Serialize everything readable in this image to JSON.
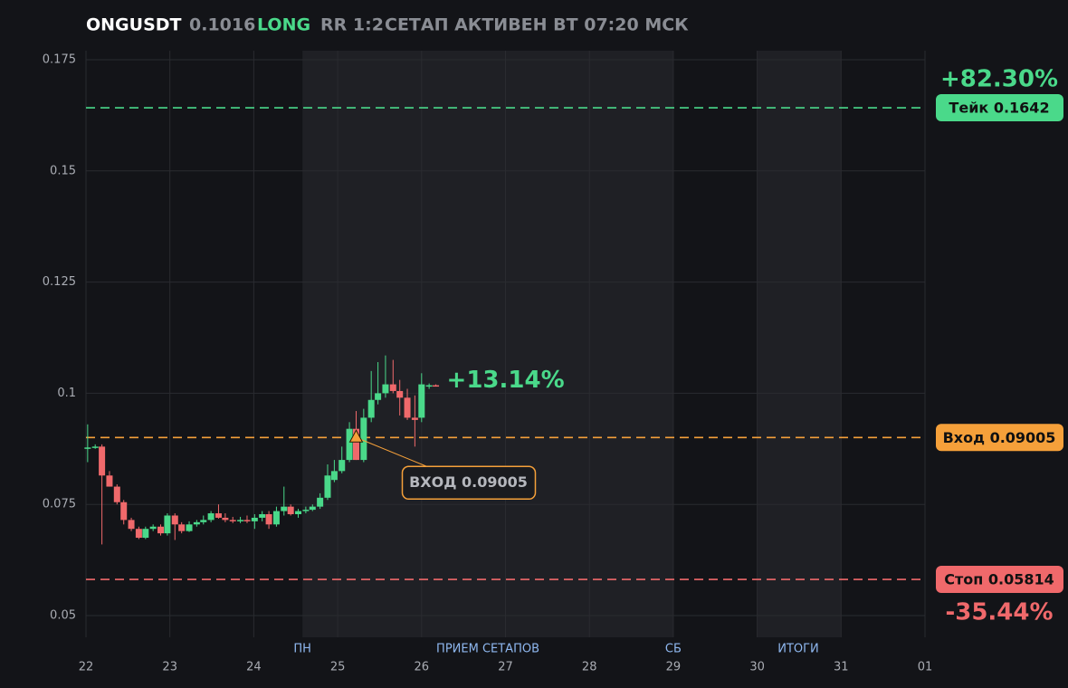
{
  "header": {
    "symbol": "ONGUSDT",
    "price": 0.1016,
    "side": "LONG",
    "rr": "RR 1:2",
    "status": "СЕТАП АКТИВЕН ВТ 07:20 МСК"
  },
  "chart_data": {
    "type": "candlestick",
    "x": [
      0.02,
      0.11,
      0.19,
      0.28,
      0.37,
      0.45,
      0.54,
      0.63,
      0.71,
      0.8,
      0.89,
      0.97,
      1.06,
      1.14,
      1.23,
      1.32,
      1.4,
      1.49,
      1.58,
      1.66,
      1.75,
      1.84,
      1.92,
      2.01,
      2.1,
      2.18,
      2.27,
      2.36,
      2.44,
      2.53,
      2.62,
      2.7,
      2.79,
      2.88,
      2.96,
      3.05,
      3.14,
      3.22,
      3.31,
      3.4,
      3.48,
      3.57,
      3.66,
      3.74,
      3.83,
      3.92,
      4.0,
      4.09,
      4.17
    ],
    "open": [
      0.0875,
      0.0878,
      0.088,
      0.0815,
      0.079,
      0.0755,
      0.0715,
      0.0695,
      0.0675,
      0.0695,
      0.07,
      0.0685,
      0.0725,
      0.0705,
      0.069,
      0.0705,
      0.071,
      0.0715,
      0.073,
      0.072,
      0.0715,
      0.0712,
      0.0715,
      0.0712,
      0.072,
      0.0728,
      0.0705,
      0.0735,
      0.0745,
      0.0728,
      0.0735,
      0.0738,
      0.0745,
      0.0765,
      0.0805,
      0.0825,
      0.085,
      0.092,
      0.085,
      0.0945,
      0.0985,
      0.1,
      0.102,
      0.1005,
      0.099,
      0.0945,
      0.0945,
      0.1015,
      0.1018
    ],
    "high": [
      0.093,
      0.0885,
      0.0885,
      0.0825,
      0.0795,
      0.076,
      0.072,
      0.07,
      0.07,
      0.0705,
      0.0705,
      0.073,
      0.073,
      0.071,
      0.0712,
      0.0715,
      0.0725,
      0.0735,
      0.075,
      0.073,
      0.0722,
      0.0722,
      0.0725,
      0.0728,
      0.0735,
      0.0735,
      0.0745,
      0.079,
      0.075,
      0.074,
      0.0745,
      0.075,
      0.0775,
      0.084,
      0.085,
      0.088,
      0.0935,
      0.096,
      0.0965,
      0.105,
      0.107,
      0.1085,
      0.1075,
      0.103,
      0.101,
      0.0995,
      0.1045,
      0.1022,
      0.102
    ],
    "low": [
      0.0845,
      0.0875,
      0.066,
      0.079,
      0.075,
      0.0705,
      0.069,
      0.0672,
      0.0672,
      0.069,
      0.068,
      0.068,
      0.067,
      0.0685,
      0.0688,
      0.07,
      0.0705,
      0.071,
      0.0718,
      0.071,
      0.0708,
      0.0708,
      0.0708,
      0.0695,
      0.0712,
      0.0695,
      0.07,
      0.0725,
      0.0725,
      0.072,
      0.073,
      0.0735,
      0.074,
      0.076,
      0.08,
      0.082,
      0.0845,
      0.085,
      0.0845,
      0.0935,
      0.0975,
      0.099,
      0.1,
      0.095,
      0.094,
      0.088,
      0.0935,
      0.101,
      0.1015
    ],
    "close": [
      0.0878,
      0.088,
      0.0815,
      0.079,
      0.0755,
      0.0715,
      0.0695,
      0.0675,
      0.0695,
      0.07,
      0.0685,
      0.0725,
      0.0705,
      0.069,
      0.0705,
      0.071,
      0.0715,
      0.073,
      0.072,
      0.0715,
      0.0712,
      0.0715,
      0.0712,
      0.072,
      0.0728,
      0.0705,
      0.0735,
      0.0745,
      0.0728,
      0.0735,
      0.0738,
      0.0745,
      0.0765,
      0.0815,
      0.0825,
      0.085,
      0.092,
      0.085,
      0.0945,
      0.0985,
      0.1,
      0.102,
      0.1005,
      0.099,
      0.0945,
      0.094,
      0.102,
      0.1018,
      0.1016
    ],
    "up_color": "#4ad98a",
    "down_color": "#f0696b",
    "xlim": [
      0,
      10
    ],
    "xticks": [
      {
        "value": 0,
        "label": "22"
      },
      {
        "value": 1,
        "label": "23"
      },
      {
        "value": 2,
        "label": "24"
      },
      {
        "value": 3,
        "label": "25"
      },
      {
        "value": 4,
        "label": "26"
      },
      {
        "value": 5,
        "label": "27"
      },
      {
        "value": 6,
        "label": "28"
      },
      {
        "value": 7,
        "label": "29"
      },
      {
        "value": 8,
        "label": "30"
      },
      {
        "value": 9,
        "label": "31"
      },
      {
        "value": 10,
        "label": "01"
      }
    ],
    "ylim": [
      0.05,
      0.175
    ],
    "yticks": [
      0.05,
      0.075,
      0.1,
      0.125,
      0.15,
      0.175
    ],
    "grid": true,
    "shaded": [
      {
        "start": 2.58,
        "end": 7.0
      },
      {
        "start": 8.0,
        "end": 9.0
      }
    ],
    "markers": [
      {
        "x": 2.58,
        "label": "ПН"
      },
      {
        "x": 4.79,
        "label": "ПРИЕМ СЕТАПОВ"
      },
      {
        "x": 7.0,
        "label": "СБ"
      },
      {
        "x": 8.49,
        "label": "ИТОГИ"
      }
    ],
    "levels": [
      {
        "value": 0.1642,
        "label": "Тейк 0.1642",
        "percent": "+82.30%",
        "color": "#4ad98a"
      },
      {
        "value": 0.09005,
        "label": "Вход 0.09005",
        "color": "#f5a03a"
      },
      {
        "value": 0.05814,
        "label": "Стоп 0.05814",
        "percent": "-35.44%",
        "color": "#f0696b"
      }
    ],
    "entry_marker": {
      "x": 3.22,
      "y": 0.09005,
      "label": "ВХОД 0.09005",
      "color": "#f5a03a"
    },
    "last_change": "+13.14%"
  }
}
